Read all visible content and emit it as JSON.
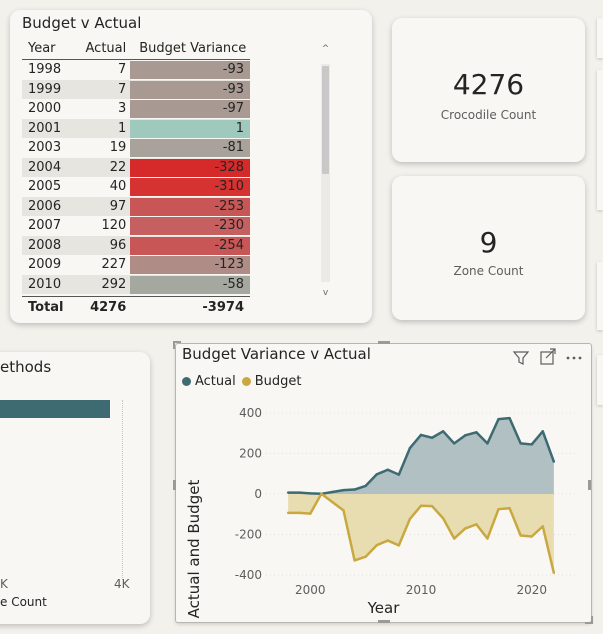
{
  "budget_table": {
    "title": "Budget v Actual",
    "columns": [
      "Year",
      "Actual",
      "Budget Variance"
    ],
    "rows": [
      {
        "year": "1998",
        "actual": "7",
        "variance": "-93",
        "color": "#a89a93"
      },
      {
        "year": "1999",
        "actual": "7",
        "variance": "-93",
        "color": "#a89a93"
      },
      {
        "year": "2000",
        "actual": "3",
        "variance": "-97",
        "color": "#a89a93"
      },
      {
        "year": "2001",
        "actual": "1",
        "variance": "1",
        "color": "#9fc9bd"
      },
      {
        "year": "2003",
        "actual": "19",
        "variance": "-81",
        "color": "#a8a29b"
      },
      {
        "year": "2004",
        "actual": "22",
        "variance": "-328",
        "color": "#d62a2a"
      },
      {
        "year": "2005",
        "actual": "40",
        "variance": "-310",
        "color": "#d63232"
      },
      {
        "year": "2006",
        "actual": "97",
        "variance": "-253",
        "color": "#c95656"
      },
      {
        "year": "2007",
        "actual": "120",
        "variance": "-230",
        "color": "#c65f5f"
      },
      {
        "year": "2008",
        "actual": "96",
        "variance": "-254",
        "color": "#c95656"
      },
      {
        "year": "2009",
        "actual": "227",
        "variance": "-123",
        "color": "#b08c87"
      },
      {
        "year": "2010",
        "actual": "292",
        "variance": "-58",
        "color": "#a4a89e"
      }
    ],
    "total": {
      "label": "Total",
      "actual": "4276",
      "variance": "-3974"
    },
    "scroll_up": "^",
    "scroll_down": "v"
  },
  "crocodile_kpi": {
    "value": "4276",
    "label": "Crocodile Count"
  },
  "zone_kpi": {
    "value": "9",
    "label": "Zone Count"
  },
  "methods_card": {
    "title": "ethods",
    "tick_left": "K",
    "tick_right": "4K",
    "axis_label": "e Count",
    "bar_color": "#3e6a72"
  },
  "variance_chart": {
    "title": "Budget Variance v Actual",
    "legend": [
      {
        "name": "Actual",
        "color": "#3e6a72"
      },
      {
        "name": "Budget",
        "color": "#c9a840"
      }
    ],
    "ylabel": "Actual and Budget",
    "xlabel": "Year",
    "y_ticks": [
      "400",
      "200",
      "0",
      "-200",
      "-400"
    ],
    "x_ticks": [
      "2000",
      "2010",
      "2020"
    ],
    "icons": [
      "filter-icon",
      "focus-mode-icon",
      "more-options-icon"
    ]
  },
  "chart_data": {
    "type": "area",
    "title": "Budget Variance v Actual",
    "xlabel": "Year",
    "ylabel": "Actual and Budget",
    "xlim": [
      1996,
      2024
    ],
    "ylim": [
      -420,
      430
    ],
    "x_ticks": [
      2000,
      2010,
      2020
    ],
    "y_ticks": [
      400,
      200,
      0,
      -200,
      -400
    ],
    "legend": "top-left",
    "series": [
      {
        "name": "Actual",
        "color": "#3e6a72",
        "x": [
          1998,
          1999,
          2000,
          2001,
          2002,
          2003,
          2004,
          2005,
          2006,
          2007,
          2008,
          2009,
          2010,
          2011,
          2012,
          2013,
          2014,
          2015,
          2016,
          2017,
          2018,
          2019,
          2020,
          2021,
          2022
        ],
        "values": [
          7,
          7,
          3,
          1,
          10,
          19,
          22,
          40,
          97,
          120,
          96,
          227,
          292,
          278,
          310,
          250,
          290,
          305,
          250,
          370,
          375,
          250,
          245,
          310,
          160
        ]
      },
      {
        "name": "Budget",
        "color": "#c9a840",
        "x": [
          1998,
          1999,
          2000,
          2001,
          2002,
          2003,
          2004,
          2005,
          2006,
          2007,
          2008,
          2009,
          2010,
          2011,
          2012,
          2013,
          2014,
          2015,
          2016,
          2017,
          2018,
          2019,
          2020,
          2021,
          2022
        ],
        "values": [
          -93,
          -93,
          -97,
          1,
          -40,
          -81,
          -328,
          -310,
          -253,
          -230,
          -254,
          -123,
          -58,
          -60,
          -120,
          -220,
          -170,
          -150,
          -220,
          -75,
          -70,
          -205,
          -210,
          -160,
          -390
        ]
      }
    ]
  }
}
